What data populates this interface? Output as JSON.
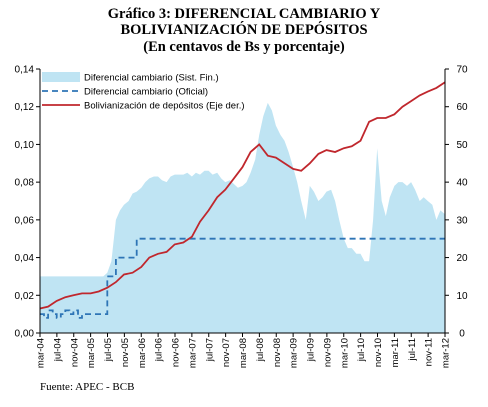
{
  "chart_data": {
    "type": "line",
    "title": "Gráfico 3: DIFERENCIAL CAMBIARIO Y BOLIVIANIZACIÓN DE DEPÓSITOS",
    "title_line1": "Gráfico 3: DIFERENCIAL CAMBIARIO Y",
    "title_line2": "BOLIVIANIZACIÓN DE DEPÓSITOS",
    "subtitle": "(En centavos de Bs y porcentaje)",
    "source": "Fuente: APEC - BCB",
    "x_ticks": [
      "mar-04",
      "jul-04",
      "nov-04",
      "mar-05",
      "jul-05",
      "nov-05",
      "mar-06",
      "jul-06",
      "nov-06",
      "mar-07",
      "jul-07",
      "nov-07",
      "mar-08",
      "jul-08",
      "nov-08",
      "mar-09",
      "jul-09",
      "nov-09",
      "mar-10",
      "jul-10",
      "nov-10",
      "mar-11",
      "jul-11",
      "nov-11",
      "mar-12"
    ],
    "y_left": {
      "lim": [
        0,
        0.14
      ],
      "ticks": [
        "0,00",
        "0,02",
        "0,04",
        "0,06",
        "0,08",
        "0,10",
        "0,12",
        "0,14"
      ]
    },
    "y_right": {
      "lim": [
        0,
        70
      ],
      "ticks": [
        "0",
        "10",
        "20",
        "30",
        "40",
        "50",
        "60",
        "70"
      ]
    },
    "grid": false,
    "legend_position": "top-left",
    "colors": {
      "area": "#bfe4f3",
      "official": "#2e75b6",
      "bolivianization": "#c0272d"
    },
    "series": [
      {
        "name": "Diferencial cambiario (Sist. Fin.)",
        "kind": "area",
        "axis": "left",
        "x": [
          2004.17,
          2004.33,
          2004.5,
          2004.67,
          2004.83,
          2005.0,
          2005.17,
          2005.33,
          2005.42,
          2005.5,
          2005.58,
          2005.67,
          2005.75,
          2005.83,
          2005.92,
          2006.0,
          2006.08,
          2006.17,
          2006.25,
          2006.33,
          2006.42,
          2006.5,
          2006.58,
          2006.67,
          2006.75,
          2006.83,
          2006.92,
          2007.0,
          2007.08,
          2007.17,
          2007.25,
          2007.33,
          2007.42,
          2007.5,
          2007.58,
          2007.67,
          2007.75,
          2007.83,
          2007.92,
          2008.0,
          2008.08,
          2008.17,
          2008.25,
          2008.33,
          2008.42,
          2008.5,
          2008.58,
          2008.67,
          2008.75,
          2008.83,
          2008.92,
          2009.0,
          2009.08,
          2009.17,
          2009.25,
          2009.33,
          2009.42,
          2009.5,
          2009.58,
          2009.67,
          2009.75,
          2009.83,
          2009.92,
          2010.0,
          2010.08,
          2010.17,
          2010.25,
          2010.33,
          2010.42,
          2010.5,
          2010.58,
          2010.67,
          2010.75,
          2010.83,
          2010.92,
          2011.0,
          2011.08,
          2011.17,
          2011.25,
          2011.33,
          2011.42,
          2011.5,
          2011.58,
          2011.67,
          2011.75,
          2011.83,
          2011.92,
          2012.0,
          2012.08,
          2012.17
        ],
        "values": [
          0.03,
          0.03,
          0.03,
          0.03,
          0.03,
          0.03,
          0.03,
          0.03,
          0.03,
          0.032,
          0.038,
          0.06,
          0.065,
          0.068,
          0.07,
          0.074,
          0.075,
          0.077,
          0.08,
          0.082,
          0.083,
          0.083,
          0.081,
          0.08,
          0.083,
          0.084,
          0.084,
          0.084,
          0.085,
          0.083,
          0.085,
          0.084,
          0.086,
          0.086,
          0.084,
          0.085,
          0.082,
          0.08,
          0.081,
          0.079,
          0.077,
          0.078,
          0.08,
          0.085,
          0.092,
          0.105,
          0.115,
          0.122,
          0.118,
          0.11,
          0.105,
          0.102,
          0.096,
          0.088,
          0.08,
          0.07,
          0.06,
          0.078,
          0.075,
          0.07,
          0.072,
          0.075,
          0.076,
          0.07,
          0.06,
          0.05,
          0.045,
          0.045,
          0.042,
          0.042,
          0.038,
          0.038,
          0.06,
          0.098,
          0.07,
          0.062,
          0.072,
          0.078,
          0.08,
          0.08,
          0.078,
          0.08,
          0.076,
          0.07,
          0.072,
          0.07,
          0.068,
          0.06,
          0.065,
          0.063
        ]
      },
      {
        "name": "Diferencial cambiario (Oficial)",
        "kind": "step-dashed",
        "axis": "left",
        "x": [
          2004.17,
          2004.25,
          2004.33,
          2004.42,
          2004.5,
          2004.58,
          2004.67,
          2004.75,
          2004.83,
          2004.92,
          2005.0,
          2005.08,
          2005.17,
          2005.25,
          2005.33,
          2005.42,
          2005.5,
          2005.58,
          2005.67,
          2005.75,
          2005.83,
          2005.92,
          2006.0,
          2006.08,
          2006.17,
          2006.5,
          2007.0,
          2008.0,
          2009.0,
          2010.0,
          2011.0,
          2012.17
        ],
        "values": [
          0.01,
          0.008,
          0.012,
          0.01,
          0.008,
          0.01,
          0.012,
          0.01,
          0.012,
          0.008,
          0.01,
          0.01,
          0.01,
          0.01,
          0.01,
          0.01,
          0.03,
          0.03,
          0.04,
          0.04,
          0.04,
          0.04,
          0.04,
          0.05,
          0.05,
          0.05,
          0.05,
          0.05,
          0.05,
          0.05,
          0.05,
          0.05
        ]
      },
      {
        "name": "Bolivianización de depósitos (Eje der.)",
        "kind": "line",
        "axis": "right",
        "x": [
          2004.17,
          2004.33,
          2004.5,
          2004.67,
          2004.83,
          2005.0,
          2005.17,
          2005.33,
          2005.5,
          2005.67,
          2005.83,
          2006.0,
          2006.17,
          2006.33,
          2006.5,
          2006.67,
          2006.83,
          2007.0,
          2007.17,
          2007.33,
          2007.5,
          2007.67,
          2007.83,
          2008.0,
          2008.17,
          2008.33,
          2008.5,
          2008.67,
          2008.83,
          2009.0,
          2009.17,
          2009.33,
          2009.5,
          2009.67,
          2009.83,
          2010.0,
          2010.17,
          2010.33,
          2010.5,
          2010.67,
          2010.83,
          2011.0,
          2011.17,
          2011.33,
          2011.5,
          2011.67,
          2011.83,
          2012.0,
          2012.17
        ],
        "values": [
          6.5,
          7.0,
          8.5,
          9.5,
          10.0,
          10.5,
          10.5,
          11.0,
          12.0,
          13.5,
          15.5,
          16.0,
          17.5,
          20.0,
          21.0,
          21.5,
          23.5,
          24.0,
          25.5,
          29.5,
          32.5,
          36.0,
          38.0,
          41.0,
          44.0,
          48.0,
          50.0,
          47.0,
          46.5,
          45.0,
          43.5,
          43.0,
          45.0,
          47.5,
          48.5,
          48.0,
          49.0,
          49.5,
          51.0,
          56.0,
          57.0,
          57.0,
          58.0,
          60.0,
          61.5,
          63.0,
          64.0,
          65.0,
          66.5
        ]
      }
    ]
  }
}
